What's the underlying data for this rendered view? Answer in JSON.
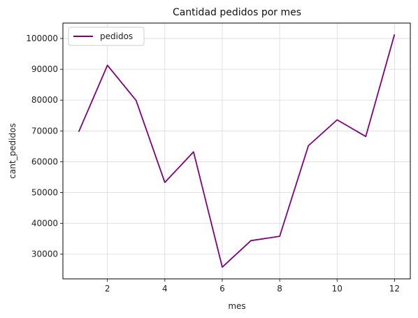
{
  "chart_data": {
    "type": "line",
    "title": "Cantidad pedidos por mes",
    "xlabel": "mes",
    "ylabel": "cant_pedidos",
    "x": [
      1,
      2,
      3,
      4,
      5,
      6,
      7,
      8,
      9,
      10,
      11,
      12
    ],
    "series": [
      {
        "name": "pedidos",
        "color": "#800080",
        "values": [
          69700,
          91300,
          79900,
          53300,
          63200,
          25800,
          34400,
          35800,
          65200,
          73600,
          68200,
          101300
        ]
      }
    ],
    "xlim": [
      0.45,
      12.55
    ],
    "ylim": [
      22000,
      105000
    ],
    "xticks": [
      2,
      4,
      6,
      8,
      10,
      12
    ],
    "yticks": [
      30000,
      40000,
      50000,
      60000,
      70000,
      80000,
      90000,
      100000
    ],
    "grid": true,
    "legend_position": "upper left"
  }
}
